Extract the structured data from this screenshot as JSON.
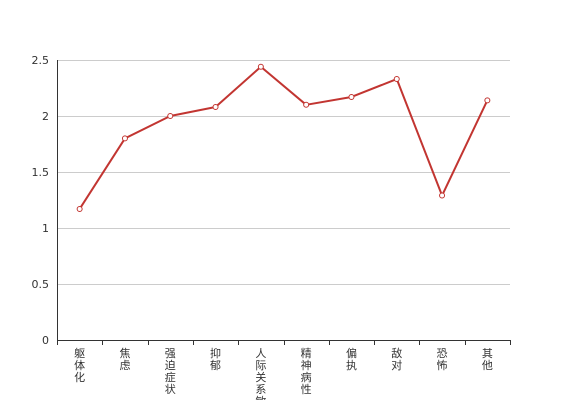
{
  "chart_data": {
    "type": "line",
    "title": "",
    "xlabel": "",
    "ylabel": "",
    "categories": [
      "躯体化",
      "焦虑",
      "强迫症状",
      "抑郁",
      "人际关系敏感",
      "精神病性",
      "偏执",
      "敌对",
      "恐怖",
      "其他"
    ],
    "series": [
      {
        "values": [
          1.17,
          1.8,
          2.0,
          2.08,
          2.44,
          2.1,
          2.17,
          2.33,
          1.29,
          2.14
        ]
      }
    ],
    "ylim": [
      0,
      2.5
    ],
    "yticks": [
      "0",
      "0.5",
      "1",
      "1.5",
      "2",
      "2.5"
    ],
    "grid": true,
    "legend": "none",
    "line_color": "#c23531",
    "marker_fill": "#ffffff",
    "grid_color": "#cccccc",
    "axis_color": "#333333"
  }
}
